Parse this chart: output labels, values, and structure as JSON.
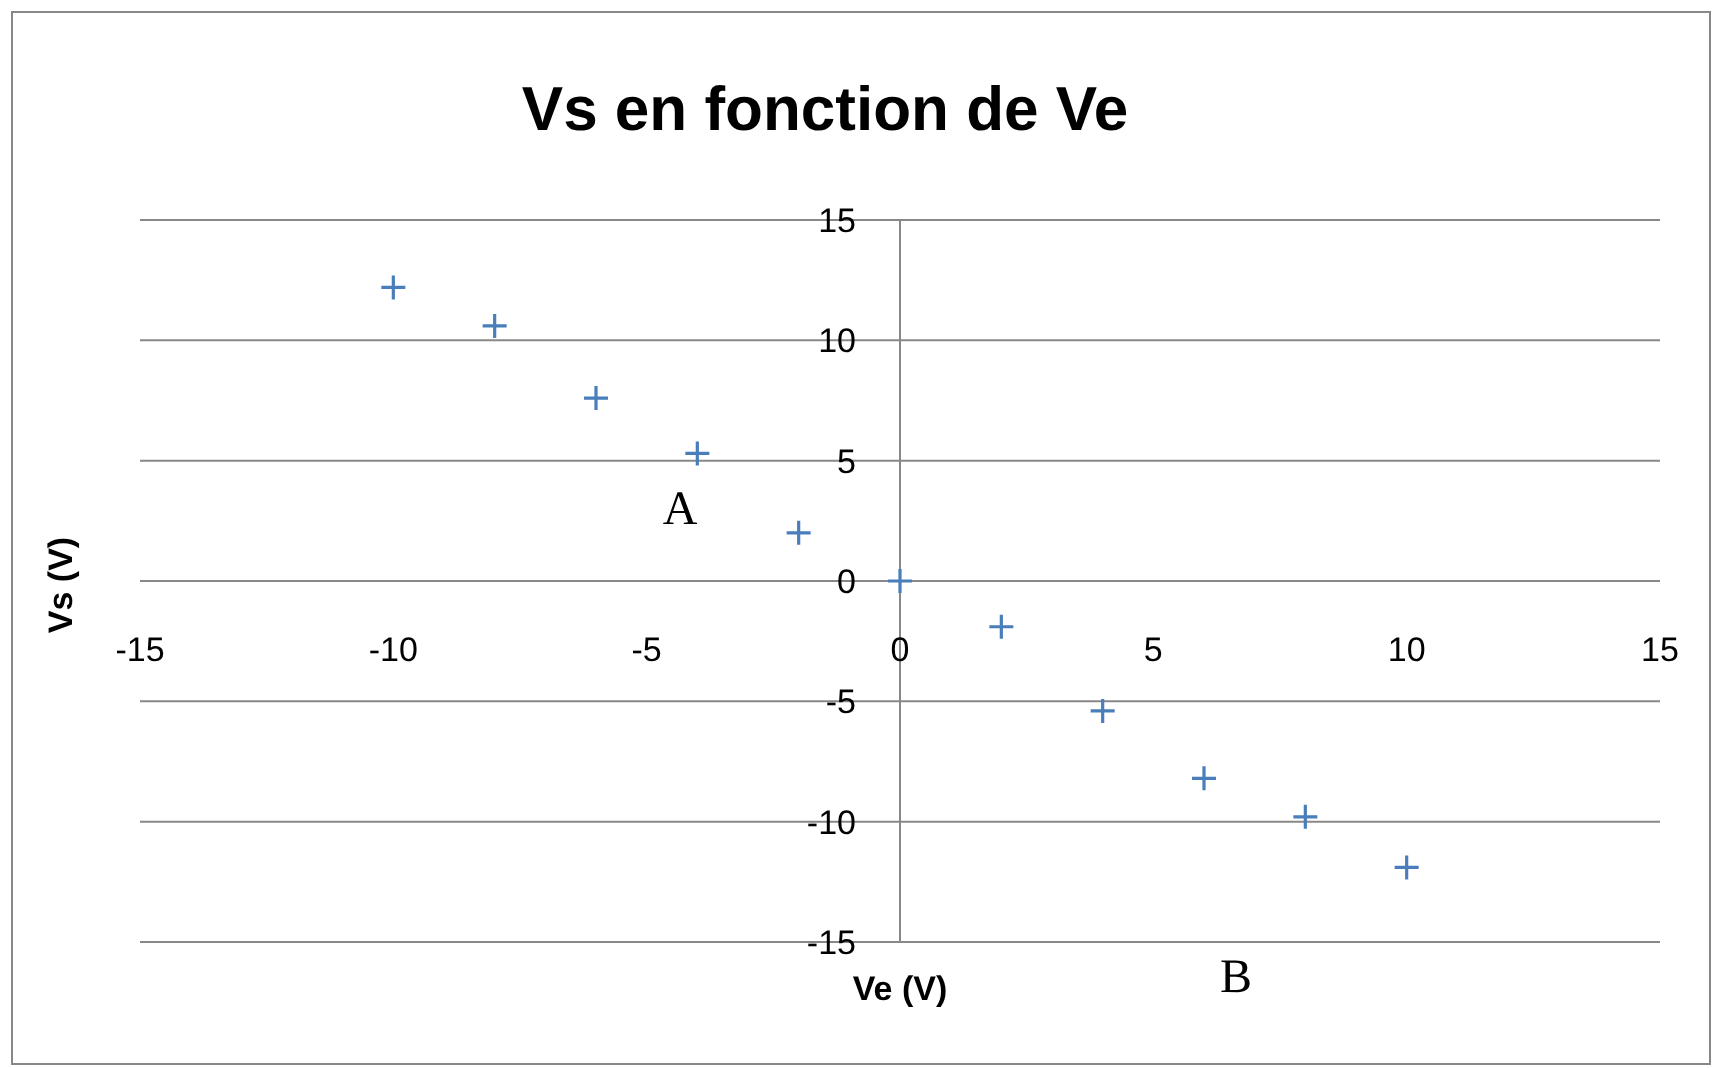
{
  "chart_data": {
    "type": "scatter",
    "title": "Vs en fonction de Ve",
    "xlabel": "Ve (V)",
    "ylabel": "Vs (V)",
    "x": [
      -10,
      -8,
      -6,
      -4,
      -2,
      0,
      2,
      4,
      6,
      8,
      10
    ],
    "series": [
      {
        "color": "#4a7ebb",
        "values": [
          12.2,
          10.6,
          7.6,
          5.3,
          2.0,
          0,
          -1.9,
          -5.4,
          -8.2,
          -9.8,
          -11.9
        ]
      }
    ],
    "xlim": [
      -15,
      15
    ],
    "xticks": [
      -15,
      -10,
      -5,
      0,
      5,
      10,
      15
    ],
    "ylim": [
      -15,
      15
    ],
    "yticks": [
      -15,
      -10,
      -5,
      0,
      5,
      10,
      15
    ],
    "grid": "y",
    "marker": "cross",
    "annotations": [
      "A",
      "B"
    ]
  }
}
